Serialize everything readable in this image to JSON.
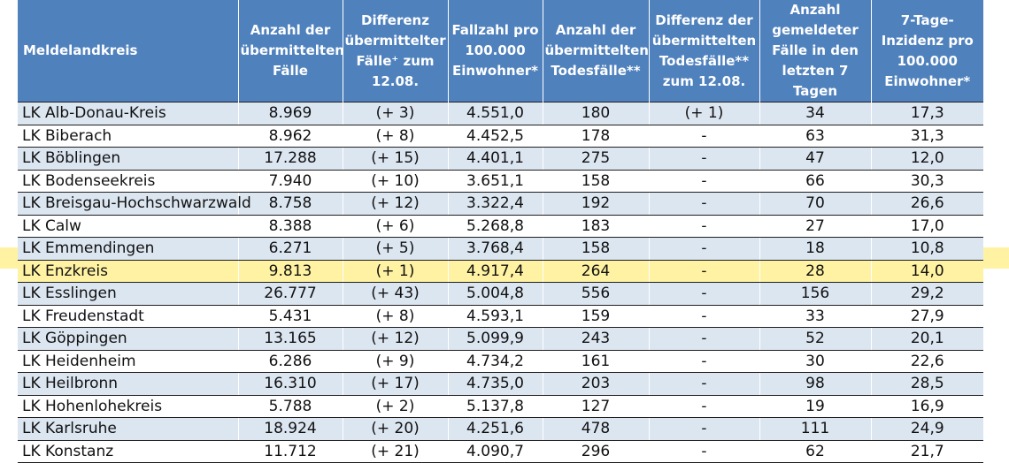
{
  "header": {
    "c0": "Meldelandkreis",
    "c1": [
      "Anzahl der",
      "übermittelten",
      "Fälle"
    ],
    "c2": [
      "Differenz",
      "übermittelter",
      "Fälle⁺ zum",
      "12.08."
    ],
    "c3": [
      "Fallzahl pro",
      "100.000",
      "Einwohner*"
    ],
    "c4": [
      "Anzahl der",
      "übermittelten",
      "Todesfälle**"
    ],
    "c5": [
      "Differenz der",
      "übermittelten",
      "Todesfälle**",
      "zum 12.08."
    ],
    "c6": [
      "Anzahl",
      "gemeldeter",
      "Fälle in den",
      "letzten 7 Tagen"
    ],
    "c7": [
      "7-Tage-",
      "Inzidenz pro",
      "100.000",
      "Einwohner*"
    ]
  },
  "rows": [
    {
      "name": "LK Alb-Donau-Kreis",
      "faelle": "8.969",
      "diff": "(+ 3)",
      "fallzahl": "4.551,0",
      "tod": "180",
      "diffTod": "(+ 1)",
      "f7": "34",
      "inz": "17,3"
    },
    {
      "name": "LK Biberach",
      "faelle": "8.962",
      "diff": "(+ 8)",
      "fallzahl": "4.452,5",
      "tod": "178",
      "diffTod": "-",
      "f7": "63",
      "inz": "31,3"
    },
    {
      "name": "LK Böblingen",
      "faelle": "17.288",
      "diff": "(+ 15)",
      "fallzahl": "4.401,1",
      "tod": "275",
      "diffTod": "-",
      "f7": "47",
      "inz": "12,0"
    },
    {
      "name": "LK Bodenseekreis",
      "faelle": "7.940",
      "diff": "(+ 10)",
      "fallzahl": "3.651,1",
      "tod": "158",
      "diffTod": "-",
      "f7": "66",
      "inz": "30,3"
    },
    {
      "name": "LK Breisgau-Hochschwarzwald",
      "faelle": "8.758",
      "diff": "(+ 12)",
      "fallzahl": "3.322,4",
      "tod": "192",
      "diffTod": "-",
      "f7": "70",
      "inz": "26,6"
    },
    {
      "name": "LK Calw",
      "faelle": "8.388",
      "diff": "(+ 6)",
      "fallzahl": "5.268,8",
      "tod": "183",
      "diffTod": "-",
      "f7": "27",
      "inz": "17,0"
    },
    {
      "name": "LK Emmendingen",
      "faelle": "6.271",
      "diff": "(+ 5)",
      "fallzahl": "3.768,4",
      "tod": "158",
      "diffTod": "-",
      "f7": "18",
      "inz": "10,8"
    },
    {
      "name": "LK Enzkreis",
      "faelle": "9.813",
      "diff": "(+ 1)",
      "fallzahl": "4.917,4",
      "tod": "264",
      "diffTod": "-",
      "f7": "28",
      "inz": "14,0",
      "highlight": true
    },
    {
      "name": "LK Esslingen",
      "faelle": "26.777",
      "diff": "(+ 43)",
      "fallzahl": "5.004,8",
      "tod": "556",
      "diffTod": "-",
      "f7": "156",
      "inz": "29,2"
    },
    {
      "name": "LK Freudenstadt",
      "faelle": "5.431",
      "diff": "(+ 8)",
      "fallzahl": "4.593,1",
      "tod": "159",
      "diffTod": "-",
      "f7": "33",
      "inz": "27,9"
    },
    {
      "name": "LK Göppingen",
      "faelle": "13.165",
      "diff": "(+ 12)",
      "fallzahl": "5.099,9",
      "tod": "243",
      "diffTod": "-",
      "f7": "52",
      "inz": "20,1"
    },
    {
      "name": "LK Heidenheim",
      "faelle": "6.286",
      "diff": "(+ 9)",
      "fallzahl": "4.734,2",
      "tod": "161",
      "diffTod": "-",
      "f7": "30",
      "inz": "22,6"
    },
    {
      "name": "LK Heilbronn",
      "faelle": "16.310",
      "diff": "(+ 17)",
      "fallzahl": "4.735,0",
      "tod": "203",
      "diffTod": "-",
      "f7": "98",
      "inz": "28,5"
    },
    {
      "name": "LK Hohenlohekreis",
      "faelle": "5.788",
      "diff": "(+ 2)",
      "fallzahl": "5.137,8",
      "tod": "127",
      "diffTod": "-",
      "f7": "19",
      "inz": "16,9"
    },
    {
      "name": "LK Karlsruhe",
      "faelle": "18.924",
      "diff": "(+ 20)",
      "fallzahl": "4.251,6",
      "tod": "478",
      "diffTod": "-",
      "f7": "111",
      "inz": "24,9"
    },
    {
      "name": "LK Konstanz",
      "faelle": "11.712",
      "diff": "(+ 21)",
      "fallzahl": "4.090,7",
      "tod": "296",
      "diffTod": "-",
      "f7": "62",
      "inz": "21,7"
    }
  ],
  "colors": {
    "header_bg": "#4f81bd",
    "row_band": "#dce6f1",
    "highlight": "#fff3a3"
  }
}
